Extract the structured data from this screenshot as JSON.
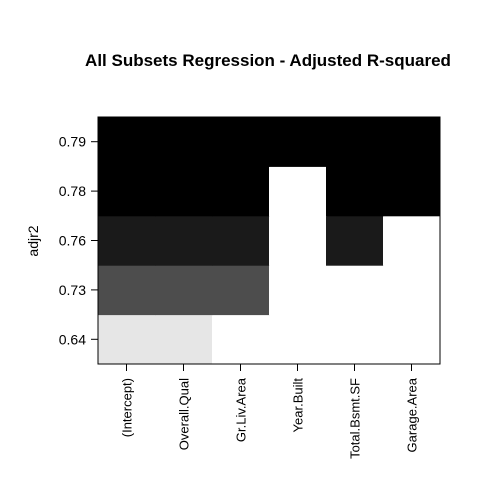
{
  "chart_data": {
    "type": "heatmap",
    "title": "All Subsets Regression - Adjusted R-squared",
    "ylabel": "adjr2",
    "xlabel": "",
    "variables": [
      "(Intercept)",
      "Overall.Qual",
      "Gr.Liv.Area",
      "Year.Built",
      "Total.Bsmt.SF",
      "Garage.Area"
    ],
    "rows": [
      {
        "adjr2_label": "0.64",
        "included": [
          true,
          true,
          false,
          false,
          false,
          false
        ],
        "shade": "#e6e6e6"
      },
      {
        "adjr2_label": "0.73",
        "included": [
          true,
          true,
          true,
          false,
          false,
          false
        ],
        "shade": "#4d4d4d"
      },
      {
        "adjr2_label": "0.76",
        "included": [
          true,
          true,
          true,
          false,
          true,
          false
        ],
        "shade": "#1a1a1a"
      },
      {
        "adjr2_label": "0.78",
        "included": [
          true,
          true,
          true,
          false,
          true,
          true
        ],
        "shade": "#000000"
      },
      {
        "adjr2_label": "0.79",
        "included": [
          true,
          true,
          true,
          true,
          true,
          true
        ],
        "shade": "#000000"
      }
    ],
    "excluded_color": "#ffffff",
    "grid": false,
    "legend": "none"
  }
}
